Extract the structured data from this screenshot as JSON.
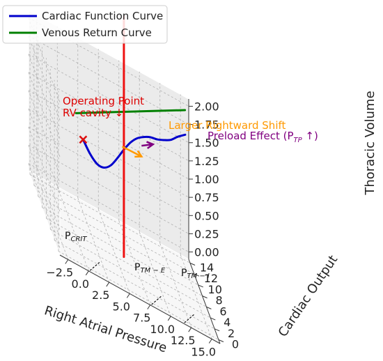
{
  "chart_data": {
    "type": "line",
    "projection": "3d",
    "xlabel": "Right Atrial Pressure",
    "ylabel": "Cardiac Output",
    "zlabel": "Thoracic Volume",
    "xlim": [
      -3.5,
      16.0
    ],
    "ylim": [
      -0.7,
      14.7
    ],
    "zlim": [
      -0.1,
      2.1
    ],
    "xticks": [
      "−2.5",
      "0.0",
      "2.5",
      "5.0",
      "7.5",
      "10.0",
      "12.5",
      "15.0"
    ],
    "yticks": [
      "0",
      "2",
      "4",
      "6",
      "8",
      "10",
      "12",
      "14"
    ],
    "zticks": [
      "0.00",
      "0.25",
      "0.50",
      "0.75",
      "1.00",
      "1.25",
      "1.50",
      "1.75",
      "2.00"
    ],
    "grid": true,
    "legend_position": "upper-left",
    "legend": [
      {
        "name": "Cardiac Function Curve",
        "color": "#0000cc"
      },
      {
        "name": "Venous Return Curve",
        "color": "#008000"
      }
    ],
    "series": [
      {
        "name": "Cardiac Function Curve",
        "color": "#0000cc",
        "x": [
          0,
          1,
          2,
          3,
          4,
          5,
          6,
          7,
          8,
          9,
          10,
          11,
          12,
          13,
          14,
          15
        ],
        "y": [
          2.0,
          2.6,
          3.2,
          3.9,
          4.6,
          5.4,
          6.2,
          7.0,
          7.8,
          8.6,
          9.4,
          10.1,
          10.8,
          11.4,
          12.0,
          12.4
        ],
        "z": [
          1.5,
          1.32,
          1.2,
          1.16,
          1.2,
          1.3,
          1.42,
          1.52,
          1.58,
          1.6,
          1.6,
          1.58,
          1.58,
          1.6,
          1.66,
          1.72
        ]
      },
      {
        "name": "Venous Return Curve",
        "color": "#008000",
        "x": [
          0,
          15
        ],
        "y": [
          5.5,
          12.5
        ],
        "z": [
          1.6,
          2.05
        ]
      },
      {
        "name": "",
        "color": "#ee1111",
        "x": [
          6.2,
          6.2
        ],
        "y": [
          7.0,
          7.0
        ],
        "z": [
          -0.1,
          3.2
        ]
      }
    ],
    "annotations": [
      {
        "text": "Operating Point",
        "color": "#dd0000"
      },
      {
        "text": "RV cavity ↓",
        "color": "#dd0000"
      },
      {
        "text": "Larger Rightward Shift",
        "color": "#ff9900"
      },
      {
        "text": "Preload Effect (P",
        "color": "#800080"
      },
      {
        "text": "TP",
        "color": "#800080"
      },
      {
        "text": " ↑)",
        "color": "#800080"
      }
    ],
    "operating_point": {
      "x": 0,
      "y": 2.0,
      "z": 1.5,
      "marker": "x",
      "color": "#dd1111"
    },
    "shift_arrow": {
      "from": {
        "x": 5.8,
        "y": 6.2,
        "z": 1.45
      },
      "to": {
        "x": 8.4,
        "y": 7.2,
        "z": 1.4
      },
      "color": "#ff9900"
    },
    "preload_arrow": {
      "from": {
        "x": 8.6,
        "y": 8.0,
        "z": 1.5
      },
      "to": {
        "x": 10.2,
        "y": 8.8,
        "z": 1.56
      },
      "color": "#800080"
    },
    "pressure_markers": [
      {
        "base": "P",
        "sub": "CRIT",
        "x": 1.0,
        "y": 0.3,
        "z": -0.05
      },
      {
        "base": "P",
        "sub": "TM − E",
        "x": 8.5,
        "y": 0.3,
        "z": -0.05
      },
      {
        "base": "P",
        "sub": "TM − I",
        "x": 12.5,
        "y": 0.3,
        "z": -0.05
      }
    ]
  }
}
